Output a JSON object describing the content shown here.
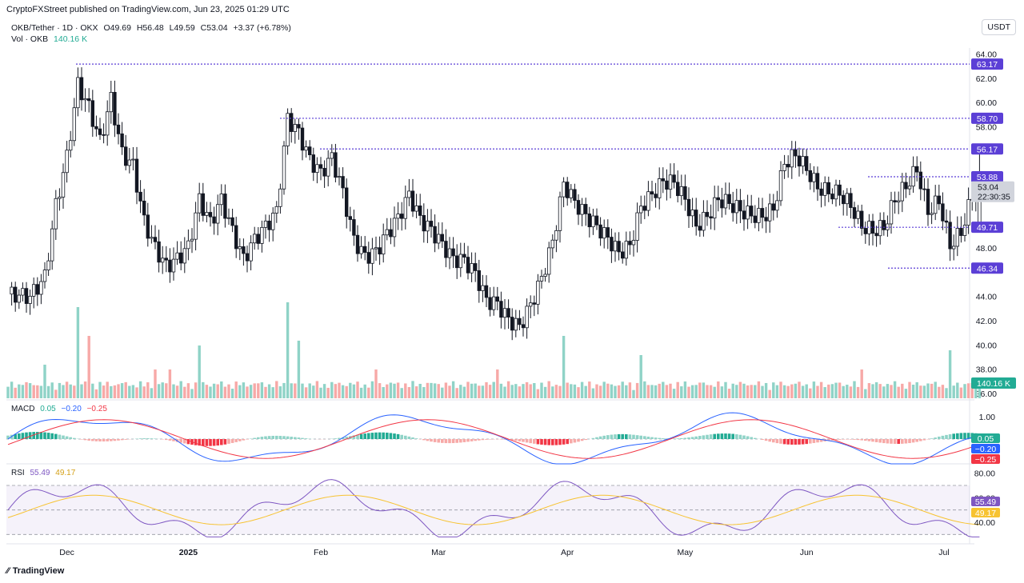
{
  "header": {
    "credit": "CryptoFXStreet published on TradingView.com, Jun 23, 2025 01:29 UTC",
    "currency": "USDT",
    "brand": "TradingView"
  },
  "legend": {
    "symbol": "OKB/Tether · 1D · OKX",
    "open": "O49.69",
    "high": "H56.48",
    "low": "L49.59",
    "close": "C53.04",
    "change": "+3.37 (+6.78%)",
    "vol_label": "Vol · OKB",
    "vol_value": "140.16 K"
  },
  "macd_legend": {
    "label": "MACD",
    "v1": "0.05",
    "v2": "−0.20",
    "v3": "−0.25"
  },
  "rsi_legend": {
    "label": "RSI",
    "v1": "55.49",
    "v2": "49.17"
  },
  "colors": {
    "up": "#22ab94",
    "down": "#f23645",
    "level": "#5b3fd6",
    "tag": "#5b3fd6",
    "macd": "#2962ff",
    "signal": "#f23645",
    "rsi": "#7e57c2",
    "rsi_ma": "#f7c331"
  },
  "chart_data": {
    "type": "candlestick",
    "price_axis": {
      "ticks": [
        "64.00",
        "62.00",
        "60.00",
        "58.00",
        "53.04",
        "48.00",
        "44.00",
        "42.00",
        "40.00",
        "38.00",
        "36.00"
      ],
      "ylim": [
        36,
        64.5
      ]
    },
    "x_ticks": [
      "Dec",
      "2025",
      "Feb",
      "Mar",
      "Apr",
      "May",
      "Jun",
      "Jul"
    ],
    "levels": [
      {
        "label": "63.17",
        "value": 63.17
      },
      {
        "label": "58.70",
        "value": 58.7
      },
      {
        "label": "56.17",
        "value": 56.17
      },
      {
        "label": "53.88",
        "value": 53.88
      },
      {
        "label": "49.71",
        "value": 49.71
      },
      {
        "label": "46.34",
        "value": 46.34
      }
    ],
    "last_price": {
      "label": "53.04",
      "countdown": "22:30:35",
      "value": 53.04
    },
    "volume_tag": "140.16 K",
    "close_path": [
      [
        0,
        44.2
      ],
      [
        6,
        44.0
      ],
      [
        10,
        45.6
      ],
      [
        13,
        51.5
      ],
      [
        16,
        55.5
      ],
      [
        19,
        61.5
      ],
      [
        22,
        59.6
      ],
      [
        25,
        56.8
      ],
      [
        28,
        60.3
      ],
      [
        31,
        55.8
      ],
      [
        34,
        54.8
      ],
      [
        37,
        50.2
      ],
      [
        40,
        48.0
      ],
      [
        43,
        46.5
      ],
      [
        46,
        47.1
      ],
      [
        49,
        48.1
      ],
      [
        52,
        52.0
      ],
      [
        55,
        50.1
      ],
      [
        58,
        52.0
      ],
      [
        61,
        49.4
      ],
      [
        64,
        47.1
      ],
      [
        67,
        48.7
      ],
      [
        70,
        49.8
      ],
      [
        73,
        51.0
      ],
      [
        76,
        58.7
      ],
      [
        79,
        57.5
      ],
      [
        82,
        55.3
      ],
      [
        85,
        54.2
      ],
      [
        88,
        55.5
      ],
      [
        91,
        52.6
      ],
      [
        94,
        48.7
      ],
      [
        97,
        47.3
      ],
      [
        100,
        47.7
      ],
      [
        103,
        49.2
      ],
      [
        106,
        50.5
      ],
      [
        109,
        52.4
      ],
      [
        112,
        50.4
      ],
      [
        115,
        49.5
      ],
      [
        118,
        48.3
      ],
      [
        121,
        47.1
      ],
      [
        124,
        47.0
      ],
      [
        127,
        45.9
      ],
      [
        130,
        43.7
      ],
      [
        133,
        43.4
      ],
      [
        136,
        42.1
      ],
      [
        139,
        41.5
      ],
      [
        142,
        43.3
      ],
      [
        145,
        45.5
      ],
      [
        148,
        48.5
      ],
      [
        151,
        53.3
      ],
      [
        154,
        51.8
      ],
      [
        157,
        50.7
      ],
      [
        160,
        49.8
      ],
      [
        163,
        48.8
      ],
      [
        166,
        47.6
      ],
      [
        169,
        48.2
      ],
      [
        172,
        51.4
      ],
      [
        175,
        52.4
      ],
      [
        178,
        53.5
      ],
      [
        181,
        53.4
      ],
      [
        184,
        52.0
      ],
      [
        187,
        49.8
      ],
      [
        190,
        50.6
      ],
      [
        193,
        52.0
      ],
      [
        196,
        51.7
      ],
      [
        199,
        51.1
      ],
      [
        202,
        50.7
      ],
      [
        205,
        50.6
      ],
      [
        208,
        51.2
      ],
      [
        211,
        55.0
      ],
      [
        214,
        55.7
      ],
      [
        217,
        54.5
      ],
      [
        220,
        53.0
      ],
      [
        223,
        52.6
      ],
      [
        226,
        52.5
      ],
      [
        229,
        51.5
      ],
      [
        232,
        49.8
      ],
      [
        235,
        49.4
      ],
      [
        238,
        49.7
      ],
      [
        241,
        52.0
      ],
      [
        244,
        53.1
      ],
      [
        247,
        54.5
      ],
      [
        250,
        51.0
      ],
      [
        253,
        51.9
      ],
      [
        256,
        48.2
      ],
      [
        259,
        49.3
      ],
      [
        262,
        52.3
      ],
      [
        264,
        53.04
      ]
    ],
    "volume_bars": [
      {
        "day": 10,
        "height": 0.35,
        "up": true
      },
      {
        "day": 19,
        "height": 0.95,
        "up": true
      },
      {
        "day": 22,
        "height": 0.65,
        "up": false
      },
      {
        "day": 52,
        "height": 0.55,
        "up": true
      },
      {
        "day": 76,
        "height": 1.0,
        "up": true
      },
      {
        "day": 79,
        "height": 0.6,
        "up": true
      },
      {
        "day": 151,
        "height": 0.65,
        "up": true
      },
      {
        "day": 172,
        "height": 0.45,
        "up": true
      },
      {
        "day": 256,
        "height": 0.5,
        "up": true
      },
      {
        "day": 264,
        "height": 0.2,
        "up": true
      }
    ],
    "macd": {
      "ticks": [
        "1.00"
      ],
      "tags": [
        "0.05",
        "−0.20",
        "−0.25"
      ],
      "ylim": [
        -2.0,
        1.5
      ]
    },
    "rsi": {
      "ticks": [
        "80.00",
        "60.00",
        "40.00"
      ],
      "tags": [
        "55.49",
        "49.17"
      ],
      "ylim": [
        25,
        85
      ],
      "band": [
        30,
        70
      ]
    }
  }
}
